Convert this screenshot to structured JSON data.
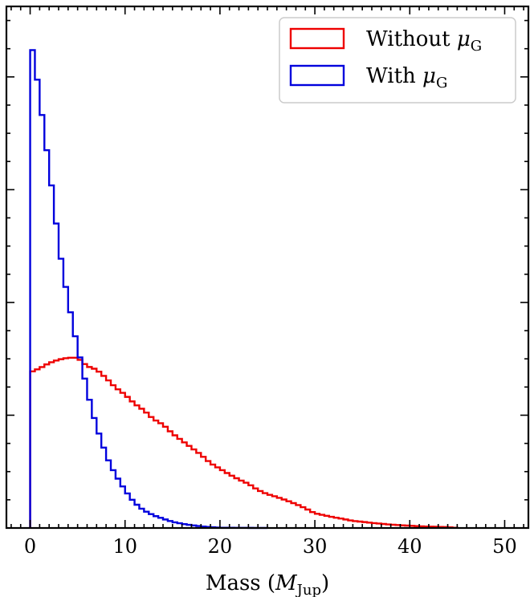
{
  "chart_data": {
    "type": "histogram",
    "title": "",
    "xlabel": "Mass (M_Jup)",
    "xlabel_parts": {
      "prefix": "Mass (",
      "symbol": "M",
      "subscript": "Jup",
      "suffix": ")"
    },
    "ylabel": "",
    "xlim": [
      -2.5,
      52.5
    ],
    "ylim": [
      0,
      0.185
    ],
    "x_ticks": [
      0,
      10,
      20,
      30,
      40,
      50
    ],
    "x_tick_labels": [
      "0",
      "10",
      "20",
      "30",
      "40",
      "50"
    ],
    "y_ticks_unlabeled": true,
    "grid": false,
    "legend_position": "top-right",
    "histtype": "step",
    "bin_width": 0.5,
    "series": [
      {
        "name": "Without μG",
        "legend_parts": {
          "prefix": "Without ",
          "symbol": "μ",
          "subscript": "G"
        },
        "color": "#ee0000",
        "x": [
          0,
          1,
          2,
          3,
          4,
          5,
          6,
          7,
          8,
          9,
          10,
          11,
          12,
          13,
          14,
          15,
          16,
          17,
          18,
          19,
          20,
          21,
          22,
          23,
          24,
          25,
          26,
          27,
          28,
          29,
          30,
          31,
          32,
          33,
          34,
          35,
          36,
          37,
          38,
          39,
          40,
          41,
          42,
          43,
          44,
          45
        ],
        "y": [
          0.0552,
          0.0566,
          0.0585,
          0.0597,
          0.0604,
          0.0604,
          0.0574,
          0.0562,
          0.0532,
          0.0498,
          0.0473,
          0.0441,
          0.0417,
          0.0386,
          0.0367,
          0.0335,
          0.031,
          0.0285,
          0.026,
          0.023,
          0.021,
          0.019,
          0.0172,
          0.0157,
          0.0135,
          0.012,
          0.011,
          0.0098,
          0.0085,
          0.007,
          0.0052,
          0.0045,
          0.0038,
          0.0032,
          0.0025,
          0.0022,
          0.0018,
          0.0015,
          0.0012,
          0.001,
          0.0008,
          0.0006,
          0.0005,
          0.0004,
          0.0003,
          0.0
        ]
      },
      {
        "name": "With μG",
        "legend_parts": {
          "prefix": "With ",
          "symbol": "μ",
          "subscript": "G"
        },
        "color": "#0000dd",
        "x": [
          0,
          0.5,
          1,
          1.5,
          2,
          2.5,
          3,
          3.5,
          4,
          4.5,
          5,
          5.5,
          6,
          6.5,
          7,
          7.5,
          8,
          8.5,
          9,
          9.5,
          10,
          10.5,
          11,
          11.5,
          12,
          13,
          14,
          15,
          16,
          17,
          18,
          19,
          20,
          25
        ],
        "y": [
          0.174,
          0.165,
          0.153,
          0.14,
          0.128,
          0.115,
          0.101,
          0.09,
          0.081,
          0.072,
          0.064,
          0.057,
          0.049,
          0.042,
          0.036,
          0.031,
          0.026,
          0.022,
          0.019,
          0.016,
          0.0135,
          0.011,
          0.009,
          0.0075,
          0.0062,
          0.0045,
          0.0033,
          0.0022,
          0.0015,
          0.001,
          0.0006,
          0.0003,
          0.0001,
          0.0
        ]
      }
    ]
  }
}
